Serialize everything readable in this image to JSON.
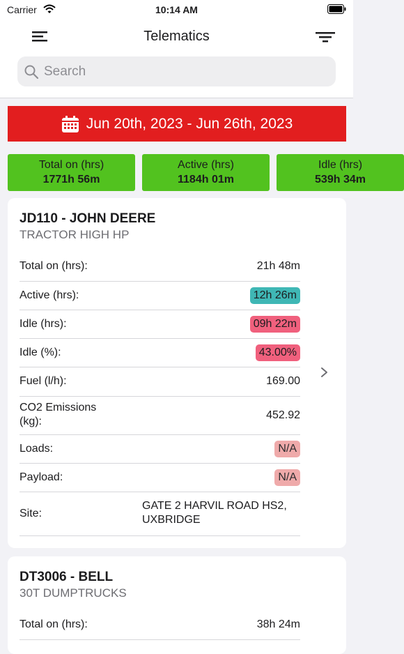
{
  "status_bar": {
    "carrier": "Carrier",
    "time": "10:14 AM"
  },
  "nav": {
    "title": "Telematics"
  },
  "search": {
    "placeholder": "Search"
  },
  "date_range": {
    "label": "Jun 20th, 2023 - Jun 26th, 2023"
  },
  "stats": [
    {
      "label": "Total on (hrs)",
      "value": "1771h 56m"
    },
    {
      "label": "Active (hrs)",
      "value": "1184h 01m"
    },
    {
      "label": "Idle (hrs)",
      "value": "539h 34m"
    }
  ],
  "vehicles": [
    {
      "title": "JD110 - JOHN DEERE",
      "subtitle": "TRACTOR HIGH HP",
      "rows": {
        "total_on": {
          "label": "Total on (hrs):",
          "value": "21h 48m"
        },
        "active": {
          "label": "Active (hrs):",
          "value": "12h 26m"
        },
        "idle_hrs": {
          "label": "Idle (hrs):",
          "value": "09h 22m"
        },
        "idle_pct": {
          "label": "Idle (%):",
          "value": "43.00%"
        },
        "fuel": {
          "label": "Fuel (l/h):",
          "value": "169.00"
        },
        "co2_line1": "CO2 Emissions",
        "co2_line2": "(kg):",
        "co2_value": "452.92",
        "loads": {
          "label": "Loads:",
          "value": "N/A"
        },
        "payload": {
          "label": "Payload:",
          "value": "N/A"
        },
        "site": {
          "label": "Site:",
          "line1": "GATE 2 HARVIL ROAD HS2,",
          "line2": "UXBRIDGE"
        }
      }
    },
    {
      "title": "DT3006 - BELL",
      "subtitle": "30T DUMPTRUCKS",
      "rows": {
        "total_on": {
          "label": "Total on (hrs):",
          "value": "38h 24m"
        }
      }
    }
  ],
  "colors": {
    "date_bar": "#e21e1f",
    "stat_green": "#52c21f",
    "active_chip": "#3fb7b5",
    "idle_chip": "#f0607d",
    "na_chip": "#efaaaa"
  },
  "icons": [
    "wifi-icon",
    "battery-icon",
    "menu-icon",
    "filter-icon",
    "search-icon",
    "calendar-icon",
    "chevron-right-icon"
  ]
}
